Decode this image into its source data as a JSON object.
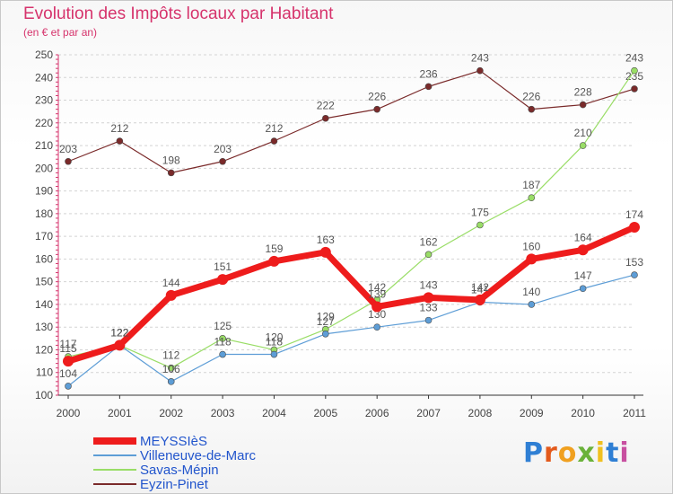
{
  "chart_data": {
    "type": "line",
    "title": "Evolution des Impôts locaux par Habitant",
    "subtitle": "(en € et par an)",
    "xlabel": "",
    "ylabel": "",
    "categories": [
      "2000",
      "2001",
      "2002",
      "2003",
      "2004",
      "2005",
      "2006",
      "2007",
      "2008",
      "2009",
      "2010",
      "2011"
    ],
    "ylim": [
      100,
      250
    ],
    "y_ticks": [
      100,
      110,
      120,
      130,
      140,
      150,
      160,
      170,
      180,
      190,
      200,
      210,
      220,
      230,
      240,
      250
    ],
    "grid": "horizontal dashed",
    "legend_position": "bottom-left",
    "series": [
      {
        "name": "MEYSSIèS",
        "color": "#ee1c1c",
        "values": [
          115,
          122,
          144,
          151,
          159,
          163,
          139,
          143,
          142,
          160,
          164,
          174
        ]
      },
      {
        "name": "Villeneuve-de-Marc",
        "color": "#5d9dd6",
        "values": [
          104,
          122,
          106,
          118,
          118,
          127,
          130,
          133,
          141,
          140,
          147,
          153
        ]
      },
      {
        "name": "Savas-Mépin",
        "color": "#99dd66",
        "values": [
          117,
          122,
          112,
          125,
          120,
          129,
          142,
          162,
          175,
          187,
          210,
          243
        ]
      },
      {
        "name": "Eyzin-Pinet",
        "color": "#7a2a2a",
        "values": [
          203,
          212,
          198,
          203,
          212,
          222,
          226,
          236,
          243,
          226,
          228,
          235
        ]
      }
    ]
  },
  "branding": {
    "logo_letters": [
      "P",
      "r",
      "o",
      "x",
      "i",
      "t",
      "i"
    ],
    "logo_colors": [
      "#2f7fd4",
      "#e35a1c",
      "#f0a020",
      "#6ab23a",
      "#f0c020",
      "#2f7fd4",
      "#c84fa0"
    ]
  }
}
